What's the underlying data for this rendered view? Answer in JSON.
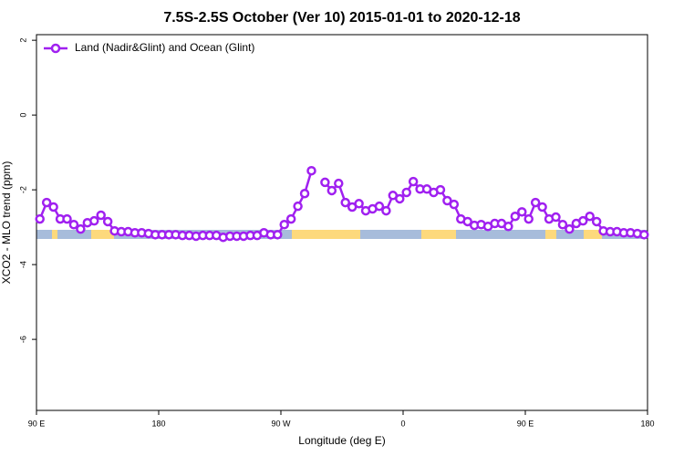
{
  "chart_data": {
    "type": "line",
    "title": "7.5S-2.5S October (Ver 10)   2015-01-01 to 2020-12-18",
    "x_label": "Longitude (deg E)",
    "y_label": "XCO2 - MLO trend (ppm)",
    "xlim": [
      90,
      540
    ],
    "ylim": [
      -7.9,
      2.15
    ],
    "xticks": [
      {
        "value": 90,
        "label": "90 E"
      },
      180,
      {
        "value": 270,
        "label": "90 W"
      },
      {
        "value": 360,
        "label": "0"
      },
      {
        "value": 450,
        "label": "90 E"
      },
      {
        "value": 540,
        "label": "180"
      }
    ],
    "yticks": [
      -6,
      -4,
      -2,
      0,
      2
    ],
    "legend": "top-left",
    "x": [
      92.5,
      97.5,
      102.5,
      107.5,
      112.5,
      117.5,
      122.5,
      127.5,
      132.5,
      137.5,
      142.5,
      147.5,
      152.5,
      157.5,
      162.5,
      167.5,
      172.5,
      177.5,
      182.5,
      187.5,
      192.5,
      197.5,
      202.5,
      207.5,
      212.5,
      217.5,
      222.5,
      227.5,
      232.5,
      237.5,
      242.5,
      247.5,
      252.5,
      257.5,
      262.5,
      267.5,
      272.5,
      277.5,
      282.5,
      287.5,
      292.5,
      297.5,
      302.5,
      307.5,
      312.5,
      317.5,
      322.5,
      327.5,
      332.5,
      337.5,
      342.5,
      347.5,
      352.5,
      357.5,
      362.5,
      367.5,
      372.5,
      377.5,
      382.5,
      387.5,
      392.5,
      397.5,
      402.5,
      407.5,
      412.5,
      417.5,
      422.5,
      427.5,
      432.5,
      437.5,
      442.5,
      447.5,
      452.5,
      457.5,
      462.5,
      467.5,
      472.5,
      477.5,
      482.5,
      487.5,
      492.5,
      497.5,
      502.5,
      507.5,
      512.5,
      517.5,
      522.5,
      527.5,
      532.5,
      537.5
    ],
    "series": [
      {
        "name": "Land (Nadir&Glint) and Ocean (Glint)",
        "color": "#a020f0",
        "values": [
          -2.78,
          -2.34,
          -2.46,
          -2.78,
          -2.78,
          -2.93,
          -3.05,
          -2.88,
          -2.83,
          -2.68,
          -2.85,
          -3.1,
          -3.12,
          -3.12,
          -3.15,
          -3.15,
          -3.17,
          -3.2,
          -3.2,
          -3.2,
          -3.2,
          -3.22,
          -3.22,
          -3.24,
          -3.22,
          -3.22,
          -3.22,
          -3.27,
          -3.24,
          -3.24,
          -3.24,
          -3.22,
          -3.22,
          -3.15,
          -3.2,
          -3.2,
          -2.93,
          -2.78,
          -2.44,
          -2.1,
          -1.49,
          null,
          -1.8,
          -2.02,
          -1.83,
          -2.34,
          -2.46,
          -2.37,
          -2.56,
          -2.51,
          -2.44,
          -2.56,
          -2.15,
          -2.24,
          -2.07,
          -1.78,
          -1.98,
          -1.98,
          -2.07,
          -2.0,
          -2.29,
          -2.39,
          -2.78,
          -2.85,
          -2.95,
          -2.93,
          -2.98,
          -2.9,
          -2.9,
          -2.98,
          -2.71,
          -2.59,
          -2.78,
          -2.34,
          -2.46,
          -2.78,
          -2.73,
          -2.93,
          -3.05,
          -2.9,
          -2.83,
          -2.71,
          -2.85,
          -3.1,
          -3.12,
          -3.12,
          -3.15,
          -3.15,
          -3.17,
          -3.2
        ]
      }
    ]
  }
}
